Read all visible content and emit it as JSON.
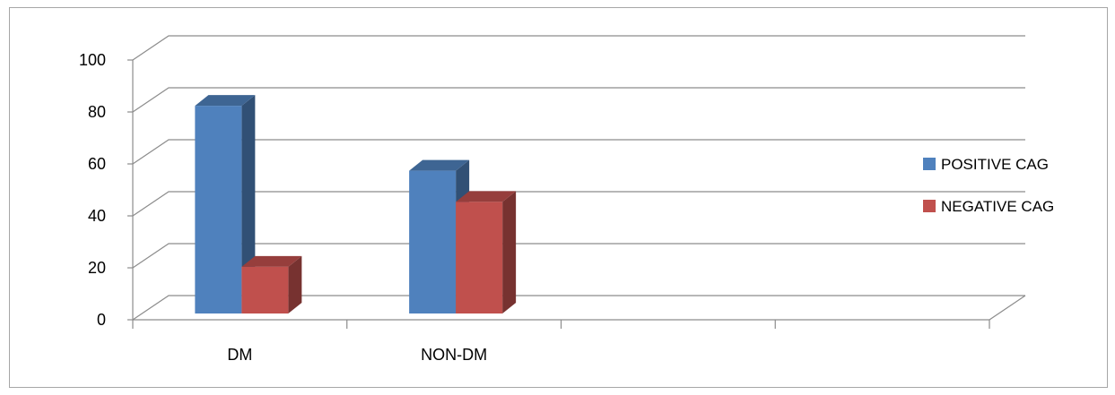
{
  "chart_data": {
    "type": "bar",
    "style": "3d-clustered-column",
    "categories": [
      "DM",
      "NON-DM"
    ],
    "series": [
      {
        "name": "POSITIVE CAG",
        "values": [
          81,
          56
        ],
        "color": "#4f81bd"
      },
      {
        "name": "NEGATIVE CAG",
        "values": [
          19,
          44
        ],
        "color": "#c0504d"
      }
    ],
    "ylim": [
      0,
      100
    ],
    "yticks": [
      0,
      20,
      40,
      60,
      80,
      100
    ],
    "grid": true,
    "legend": "right"
  }
}
